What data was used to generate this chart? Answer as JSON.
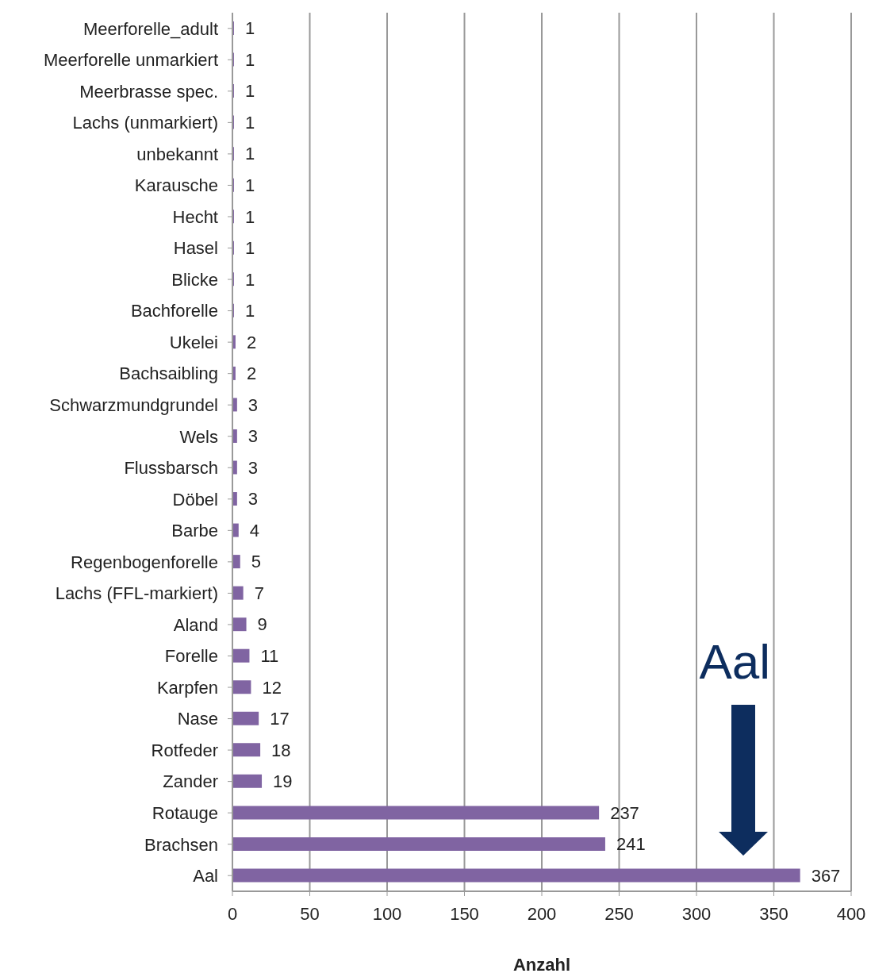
{
  "chart_data": {
    "type": "bar",
    "orientation": "horizontal",
    "xlabel": "Anzahl",
    "categories": [
      "Meerforelle_adult",
      "Meerforelle unmarkiert",
      "Meerbrasse spec.",
      "Lachs (unmarkiert)",
      "unbekannt",
      "Karausche",
      "Hecht",
      "Hasel",
      "Blicke",
      "Bachforelle",
      "Ukelei",
      "Bachsaibling",
      "Schwarzmundgrundel",
      "Wels",
      "Flussbarsch",
      "Döbel",
      "Barbe",
      "Regenbogenforelle",
      "Lachs (FFL-markiert)",
      "Aland",
      "Forelle",
      "Karpfen",
      "Nase",
      "Rotfeder",
      "Zander",
      "Rotauge",
      "Brachsen",
      "Aal"
    ],
    "values": [
      1,
      1,
      1,
      1,
      1,
      1,
      1,
      1,
      1,
      1,
      2,
      2,
      3,
      3,
      3,
      3,
      4,
      5,
      7,
      9,
      11,
      12,
      17,
      18,
      19,
      237,
      241,
      367
    ],
    "color": "#8064a2",
    "xlim": [
      0,
      400
    ],
    "xticks": [
      0,
      50,
      100,
      150,
      200,
      250,
      300,
      350,
      400
    ],
    "grid": "x",
    "data_labels": true,
    "annotations": [
      "Aal"
    ]
  }
}
